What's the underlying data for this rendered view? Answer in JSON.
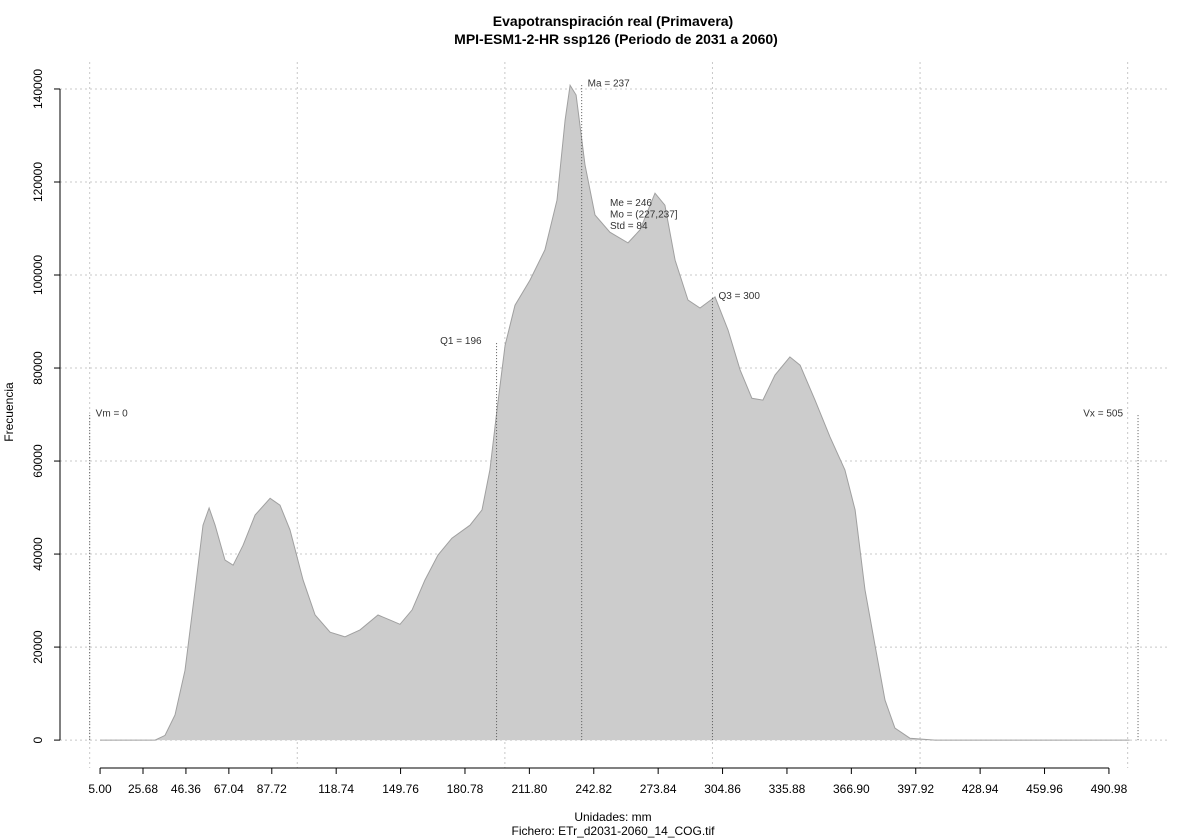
{
  "chart_data": {
    "type": "area",
    "title": "Evapotranspiración real (Primavera)",
    "subtitle": "MPI-ESM1-2-HR ssp126 (Periodo de 2031 a 2060)",
    "xlabel": "Unidades: mm",
    "caption": "Fichero: ETr_d2031-2060_14_COG.tif",
    "ylabel": "Frecuencia",
    "color": "#cccccc",
    "line_color": "#a0a0a0",
    "grid": true,
    "x": [
      5,
      31.5,
      36.3,
      41.1,
      45.9,
      50.8,
      54.6,
      57.5,
      60.4,
      65.2,
      69.1,
      73.9,
      79.7,
      86.9,
      91.7,
      96.5,
      102.8,
      108.6,
      115.8,
      123.0,
      130.2,
      138.9,
      144.7,
      149.5,
      155.3,
      161.5,
      167.8,
      174.5,
      183.2,
      189.0,
      192.8,
      196.2,
      200.1,
      204.9,
      212.1,
      219.3,
      225.1,
      229.0,
      231.4,
      234.3,
      238.6,
      243.4,
      250.6,
      259.3,
      265.1,
      272.3,
      277.1,
      282.0,
      288.2,
      294.0,
      301.2,
      307.5,
      313.3,
      319.0,
      324.3,
      330.1,
      337.3,
      342.2,
      349.4,
      356.6,
      363.8,
      368.7,
      373.5,
      378.3,
      383.1,
      387.9,
      395.1,
      407.2,
      501
    ],
    "values": [
      0,
      0,
      1000,
      5400,
      15000,
      32300,
      46200,
      49900,
      46200,
      38700,
      37600,
      41900,
      48400,
      52000,
      50500,
      45200,
      34400,
      26900,
      23200,
      22200,
      23700,
      26900,
      25800,
      24900,
      28000,
      34400,
      39800,
      43400,
      46200,
      49500,
      58100,
      71000,
      84900,
      93500,
      98900,
      105400,
      116100,
      133300,
      140800,
      138700,
      123700,
      112900,
      109200,
      106900,
      109700,
      117600,
      115000,
      103200,
      94600,
      92900,
      95300,
      88200,
      79600,
      73500,
      73100,
      78500,
      82400,
      80600,
      73100,
      65200,
      58100,
      49500,
      32300,
      20400,
      8600,
      2600,
      400,
      0,
      0
    ],
    "xlim": [
      -14.3,
      520.4
    ],
    "ylim": [
      -6000,
      145800
    ],
    "xticks": [
      {
        "value": 5,
        "label": "5.00"
      },
      25.68,
      46.36,
      67.04,
      87.72,
      118.74,
      149.76,
      180.78,
      {
        "value": 211.8,
        "label": "211.80"
      },
      242.82,
      273.84,
      304.86,
      335.88,
      {
        "value": 366.9,
        "label": "366.90"
      },
      397.92,
      428.94,
      459.96,
      490.98
    ],
    "yticks": [
      0,
      20000,
      40000,
      60000,
      80000,
      100000,
      120000,
      140000
    ],
    "xgrid": [
      0,
      100,
      200,
      300,
      400,
      500
    ],
    "annotations": [
      {
        "text": "Vm = 0",
        "x": 0,
        "y": 70000,
        "align": "right"
      },
      {
        "text": "Q1 = 196",
        "x": 196,
        "y": 85600,
        "align": "left"
      },
      {
        "text": "Ma = 237",
        "x": 237,
        "y": 141000,
        "align": "right"
      },
      {
        "text": "Q3 = 300",
        "x": 300,
        "y": 95300,
        "align": "right"
      },
      {
        "text": "Vx = 505",
        "x": 505,
        "y": 70000,
        "align": "left"
      }
    ],
    "stats": [
      "Me = 246",
      "Mo = (227,237]",
      "Std = 84"
    ]
  }
}
